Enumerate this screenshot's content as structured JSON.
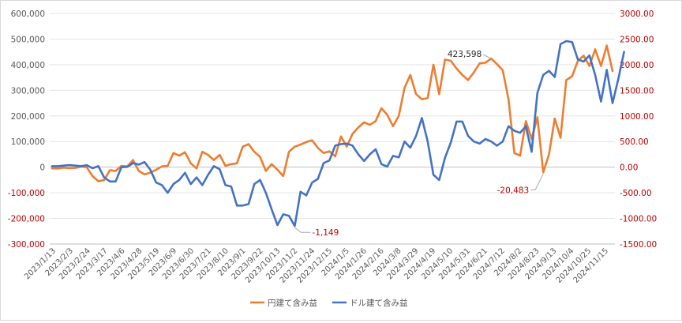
{
  "chart_data": {
    "type": "line",
    "title": "",
    "xlabel": "",
    "ylabel": "",
    "grid": true,
    "legend_position": "bottom",
    "y_left": {
      "min": -300000,
      "max": 600000,
      "step": 100000,
      "ticks": [
        "600,000",
        "500,000",
        "400,000",
        "300,000",
        "200,000",
        "100,000",
        "0",
        "-100,000",
        "-200,000",
        "-300,000"
      ]
    },
    "y_right": {
      "min": -1500,
      "max": 3000,
      "step": 500,
      "ticks": [
        "3000.00",
        "2500.00",
        "2000.00",
        "1500.00",
        "1000.00",
        "500.00",
        "0.00",
        "-500.00",
        "-1000.00",
        "-1500.00"
      ],
      "tick_color": "#c00000"
    },
    "x_tick_labels": [
      "2023/1/13",
      "2023/2/3",
      "2023/2/24",
      "2023/3/17",
      "2023/4/6",
      "2023/4/28",
      "2023/5/19",
      "2023/6/9",
      "2023/6/30",
      "2023/7/21",
      "2023/8/10",
      "2023/9/1",
      "2023/9/22",
      "2023/10/13",
      "2023/11/2",
      "2023/11/24",
      "2023/12/15",
      "2024/1/5",
      "2024/1/26",
      "2024/2/16",
      "2024/3/8",
      "2024/3/29",
      "2024/4/19",
      "2024/5/10",
      "2024/5/31",
      "2024/6/21",
      "2024/7/12",
      "2024/8/2",
      "2024/8/23",
      "2024/9/13",
      "2024/10/4",
      "2024/10/25",
      "2024/11/15"
    ],
    "series": [
      {
        "name": "円建て含み益",
        "axis": "left",
        "color": "#ed7d31",
        "values": [
          -5000,
          -5000,
          -2000,
          -4000,
          -3000,
          2000,
          0,
          -35000,
          -55000,
          -50000,
          -12000,
          -15000,
          5000,
          3000,
          28000,
          -15000,
          -28000,
          -22000,
          -10000,
          3000,
          5000,
          55000,
          45000,
          58000,
          15000,
          -5000,
          60000,
          48000,
          28000,
          48000,
          5000,
          12000,
          15000,
          80000,
          90000,
          60000,
          40000,
          -15000,
          12000,
          -10000,
          -35000,
          60000,
          80000,
          88000,
          98000,
          105000,
          75000,
          55000,
          62000,
          42000,
          120000,
          80000,
          130000,
          155000,
          175000,
          165000,
          180000,
          230000,
          205000,
          160000,
          200000,
          310000,
          360000,
          285000,
          265000,
          270000,
          400000,
          285000,
          420000,
          415000,
          385000,
          360000,
          340000,
          370000,
          405000,
          408000,
          423598,
          402000,
          378000,
          265000,
          55000,
          45000,
          180000,
          110000,
          195000,
          -20483,
          50000,
          190000,
          115000,
          340000,
          355000,
          415000,
          435000,
          395000,
          460000,
          395000,
          475000,
          375000
        ]
      },
      {
        "name": "ドル建て含み益",
        "axis": "right",
        "color": "#4472c4",
        "values": [
          20,
          20,
          30,
          40,
          30,
          20,
          40,
          -20,
          20,
          -200,
          -280,
          -280,
          0,
          5,
          80,
          50,
          100,
          -50,
          -300,
          -350,
          -500,
          -330,
          -250,
          -110,
          -330,
          -200,
          -350,
          -150,
          20,
          -40,
          -350,
          -380,
          -750,
          -750,
          -720,
          -330,
          -250,
          -500,
          -820,
          -1130,
          -920,
          -950,
          -1149,
          -480,
          -550,
          -300,
          -230,
          80,
          130,
          420,
          450,
          460,
          420,
          250,
          120,
          250,
          350,
          60,
          10,
          220,
          190,
          500,
          380,
          610,
          960,
          500,
          -150,
          -250,
          180,
          480,
          890,
          890,
          610,
          500,
          460,
          550,
          500,
          420,
          500,
          800,
          710,
          670,
          800,
          300,
          1450,
          1800,
          1880,
          1760,
          2400,
          2460,
          2440,
          2100,
          2060,
          2180,
          1800,
          1280,
          1900,
          1250,
          1720,
          2250
        ]
      }
    ],
    "annotations": [
      {
        "series": 0,
        "index": 76,
        "text": "423,598",
        "color": "#262626"
      },
      {
        "series": 0,
        "index": 85,
        "text": "-20,483",
        "color": "#c00000"
      },
      {
        "series": 1,
        "index": 42,
        "text": "-1,149",
        "color": "#c00000"
      }
    ]
  }
}
